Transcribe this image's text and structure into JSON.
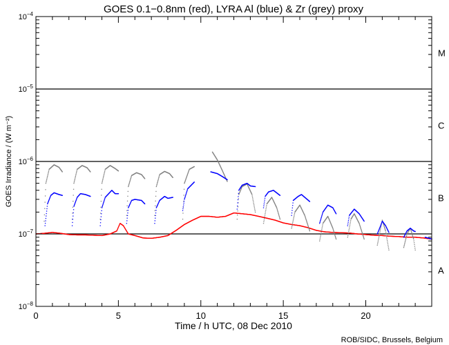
{
  "chart_data": {
    "type": "scatter",
    "title": "GOES 0.1−0.8nm (red), LYRA Al (blue) & Zr (grey) proxy",
    "xlabel": "Time / h UTC, 08 Dec 2010",
    "ylabel": "GOES Irradiance / (W m⁻²)",
    "credit": "ROB/SIDC, Brussels, Belgium",
    "xlim": [
      0,
      24
    ],
    "ylim": [
      1e-08,
      0.0001
    ],
    "yscale": "log",
    "x_ticks": [
      0,
      5,
      10,
      15,
      20
    ],
    "x_tick_labels": [
      "0",
      "5",
      "10",
      "15",
      "20"
    ],
    "y_ticks": [
      {
        "value": 0.0001,
        "base": "10",
        "exp": "−4"
      },
      {
        "value": 1e-05,
        "base": "10",
        "exp": "−5"
      },
      {
        "value": 1e-06,
        "base": "10",
        "exp": "−6"
      },
      {
        "value": 1e-07,
        "base": "10",
        "exp": "−7"
      },
      {
        "value": 1e-08,
        "base": "10",
        "exp": "−8"
      }
    ],
    "flare_classes": [
      {
        "label": "M",
        "value": 3.16e-05
      },
      {
        "label": "C",
        "value": 3.16e-06
      },
      {
        "label": "B",
        "value": 3.16e-07
      },
      {
        "label": "A",
        "value": 3.16e-08
      }
    ],
    "threshold_lines": [
      1e-05,
      1e-06,
      1e-07
    ],
    "series": [
      {
        "name": "GOES 0.1-0.8nm",
        "color": "#ff0000",
        "segments": [
          [
            [
              0,
              1e-07
            ],
            [
              0.5,
              1.02e-07
            ],
            [
              1,
              1.05e-07
            ],
            [
              1.5,
              1.02e-07
            ],
            [
              2,
              9.8e-08
            ],
            [
              2.5,
              9.7e-08
            ],
            [
              3,
              9.7e-08
            ],
            [
              3.5,
              9.6e-08
            ],
            [
              4,
              9.5e-08
            ],
            [
              4.5,
              1e-07
            ],
            [
              4.9,
              1.1e-07
            ],
            [
              5.1,
              1.4e-07
            ],
            [
              5.3,
              1.3e-07
            ],
            [
              5.6,
              1e-07
            ],
            [
              6,
              9.5e-08
            ],
            [
              6.5,
              8.8e-08
            ],
            [
              7,
              8.7e-08
            ],
            [
              7.5,
              9e-08
            ],
            [
              8,
              9.5e-08
            ],
            [
              8.5,
              1.12e-07
            ],
            [
              9,
              1.35e-07
            ],
            [
              9.5,
              1.55e-07
            ],
            [
              10,
              1.75e-07
            ],
            [
              10.5,
              1.75e-07
            ],
            [
              11,
              1.7e-07
            ],
            [
              11.5,
              1.75e-07
            ],
            [
              12,
              1.95e-07
            ],
            [
              12.5,
              1.9e-07
            ],
            [
              13,
              1.85e-07
            ],
            [
              13.5,
              1.75e-07
            ],
            [
              14,
              1.65e-07
            ],
            [
              14.5,
              1.55e-07
            ],
            [
              15,
              1.42e-07
            ],
            [
              15.5,
              1.35e-07
            ],
            [
              16,
              1.3e-07
            ],
            [
              16.5,
              1.22e-07
            ],
            [
              17,
              1.12e-07
            ],
            [
              17.5,
              1.07e-07
            ],
            [
              18,
              1.05e-07
            ],
            [
              18.5,
              1.04e-07
            ],
            [
              19,
              1.03e-07
            ],
            [
              19.5,
              1e-07
            ],
            [
              20,
              9.8e-08
            ],
            [
              20.5,
              9.6e-08
            ],
            [
              21,
              9.5e-08
            ],
            [
              21.5,
              9.3e-08
            ],
            [
              22,
              9.2e-08
            ],
            [
              22.5,
              9e-08
            ],
            [
              23,
              9e-08
            ],
            [
              23.5,
              8.8e-08
            ],
            [
              24,
              8.5e-08
            ]
          ]
        ]
      },
      {
        "name": "LYRA Zr proxy",
        "color": "#808080",
        "segments": [
          [
            [
              0.5,
              1.5e-07
            ],
            [
              0.6,
              5e-07
            ],
            [
              0.8,
              7.8e-07
            ],
            [
              1.1,
              9e-07
            ],
            [
              1.4,
              8.3e-07
            ],
            [
              1.6,
              7.2e-07
            ]
          ],
          [
            [
              2.2,
              1.6e-07
            ],
            [
              2.3,
              5e-07
            ],
            [
              2.5,
              7.8e-07
            ],
            [
              2.8,
              8.8e-07
            ],
            [
              3.1,
              8.2e-07
            ],
            [
              3.3,
              7.2e-07
            ]
          ],
          [
            [
              3.9,
              1.6e-07
            ],
            [
              4.0,
              5e-07
            ],
            [
              4.2,
              7.8e-07
            ],
            [
              4.5,
              8.8e-07
            ],
            [
              4.8,
              8e-07
            ],
            [
              5.0,
              7.4e-07
            ]
          ],
          [
            [
              5.5,
              1.8e-07
            ],
            [
              5.6,
              4.5e-07
            ],
            [
              5.8,
              6.4e-07
            ],
            [
              6.1,
              7e-07
            ],
            [
              6.4,
              6.6e-07
            ],
            [
              6.6,
              5.8e-07
            ]
          ],
          [
            [
              7.2,
              1.8e-07
            ],
            [
              7.3,
              4.5e-07
            ],
            [
              7.5,
              6.6e-07
            ],
            [
              7.8,
              7.3e-07
            ],
            [
              8.1,
              6.8e-07
            ],
            [
              8.3,
              6e-07
            ]
          ],
          [
            [
              8.9,
              1.6e-07
            ],
            [
              9.0,
              5e-07
            ],
            [
              9.3,
              7.8e-07
            ],
            [
              9.6,
              8.5e-07
            ]
          ],
          [
            [
              10.7,
              1.35e-06
            ],
            [
              11.0,
              1.05e-06
            ],
            [
              11.3,
              7.5e-07
            ],
            [
              11.6,
              5.3e-07
            ]
          ],
          [
            [
              12.2,
              1.6e-07
            ],
            [
              12.3,
              3.5e-07
            ],
            [
              12.5,
              4.5e-07
            ],
            [
              12.8,
              4.9e-07
            ],
            [
              13.1,
              3.5e-07
            ],
            [
              13.3,
              2e-07
            ]
          ],
          [
            [
              13.8,
              1.4e-07
            ],
            [
              14.0,
              2.6e-07
            ],
            [
              14.3,
              3.2e-07
            ],
            [
              14.6,
              2.3e-07
            ],
            [
              14.8,
              1.6e-07
            ]
          ],
          [
            [
              15.5,
              1.2e-07
            ],
            [
              15.7,
              2e-07
            ],
            [
              16.0,
              2.5e-07
            ],
            [
              16.3,
              1.8e-07
            ],
            [
              16.6,
              1.1e-07
            ]
          ],
          [
            [
              17.2,
              8e-08
            ],
            [
              17.4,
              1.4e-07
            ],
            [
              17.7,
              1.75e-07
            ],
            [
              18.0,
              1.2e-07
            ],
            [
              18.2,
              8.5e-08
            ]
          ],
          [
            [
              18.9,
              9e-08
            ],
            [
              19.1,
              1.6e-07
            ],
            [
              19.3,
              1.9e-07
            ],
            [
              19.6,
              1.4e-07
            ],
            [
              19.9,
              8.5e-08
            ]
          ],
          [
            [
              20.7,
              7e-08
            ],
            [
              20.9,
              1.2e-07
            ],
            [
              21.0,
              1.55e-07
            ],
            [
              21.2,
              1.1e-07
            ],
            [
              21.4,
              6e-08
            ]
          ],
          [
            [
              22.3,
              6.5e-08
            ],
            [
              22.5,
              1e-07
            ],
            [
              22.7,
              1.2e-07
            ],
            [
              22.9,
              8.5e-08
            ],
            [
              23.0,
              6e-08
            ]
          ]
        ]
      },
      {
        "name": "LYRA Al proxy",
        "color": "#0000ff",
        "segments": [
          [
            [
              0.55,
              1.3e-07
            ],
            [
              0.7,
              2.6e-07
            ],
            [
              0.9,
              3.4e-07
            ],
            [
              1.1,
              3.7e-07
            ],
            [
              1.4,
              3.5e-07
            ],
            [
              1.6,
              3.4e-07
            ]
          ],
          [
            [
              2.2,
              1.3e-07
            ],
            [
              2.3,
              2.4e-07
            ],
            [
              2.5,
              3.2e-07
            ],
            [
              2.7,
              3.6e-07
            ],
            [
              3.0,
              3.5e-07
            ],
            [
              3.3,
              3.3e-07
            ]
          ],
          [
            [
              3.9,
              1.3e-07
            ],
            [
              4.0,
              2.3e-07
            ],
            [
              4.2,
              3.2e-07
            ],
            [
              4.6,
              4e-07
            ],
            [
              4.8,
              3.6e-07
            ],
            [
              5.0,
              3.6e-07
            ]
          ],
          [
            [
              5.5,
              1.4e-07
            ],
            [
              5.6,
              2.3e-07
            ],
            [
              5.8,
              2.9e-07
            ],
            [
              6.0,
              3e-07
            ],
            [
              6.4,
              2.9e-07
            ],
            [
              6.6,
              2.6e-07
            ]
          ],
          [
            [
              7.2,
              1.4e-07
            ],
            [
              7.3,
              2.3e-07
            ],
            [
              7.5,
              2.9e-07
            ],
            [
              7.8,
              3.3e-07
            ],
            [
              8.0,
              3.1e-07
            ],
            [
              8.3,
              3.2e-07
            ]
          ],
          [
            [
              8.9,
              2.1e-07
            ],
            [
              9.0,
              3e-07
            ],
            [
              9.2,
              4.2e-07
            ],
            [
              9.6,
              5.2e-07
            ]
          ],
          [
            [
              10.6,
              7.2e-07
            ],
            [
              11.0,
              6.8e-07
            ],
            [
              11.3,
              6.2e-07
            ],
            [
              11.6,
              5.6e-07
            ]
          ],
          [
            [
              12.2,
              2.2e-07
            ],
            [
              12.3,
              4e-07
            ],
            [
              12.5,
              4.7e-07
            ],
            [
              12.8,
              5e-07
            ],
            [
              13.0,
              4.6e-07
            ],
            [
              13.3,
              4.5e-07
            ]
          ],
          [
            [
              13.8,
              2.3e-07
            ],
            [
              13.9,
              3.3e-07
            ],
            [
              14.1,
              3.8e-07
            ],
            [
              14.4,
              4e-07
            ],
            [
              14.8,
              3.4e-07
            ]
          ],
          [
            [
              15.5,
              1.8e-07
            ],
            [
              15.6,
              2.9e-07
            ],
            [
              15.9,
              3.3e-07
            ],
            [
              16.1,
              3.5e-07
            ],
            [
              16.6,
              2.8e-07
            ]
          ],
          [
            [
              17.2,
              1.4e-07
            ],
            [
              17.4,
              2e-07
            ],
            [
              17.7,
              2.5e-07
            ],
            [
              18.0,
              2.3e-07
            ],
            [
              18.2,
              1.9e-07
            ]
          ],
          [
            [
              18.9,
              1.3e-07
            ],
            [
              19.0,
              1.8e-07
            ],
            [
              19.3,
              2.2e-07
            ],
            [
              19.6,
              1.9e-07
            ],
            [
              19.9,
              1.5e-07
            ]
          ],
          [
            [
              20.7,
              1e-07
            ],
            [
              20.9,
              1.3e-07
            ],
            [
              21.0,
              1.5e-07
            ],
            [
              21.2,
              1.3e-07
            ],
            [
              21.4,
              1.05e-07
            ]
          ],
          [
            [
              22.3,
              9e-08
            ],
            [
              22.5,
              1.1e-07
            ],
            [
              22.7,
              1.2e-07
            ],
            [
              22.9,
              1.1e-07
            ],
            [
              23.0,
              1.08e-07
            ]
          ],
          [
            [
              23.6,
              9e-08
            ],
            [
              24.0,
              8.5e-08
            ]
          ]
        ]
      }
    ]
  }
}
